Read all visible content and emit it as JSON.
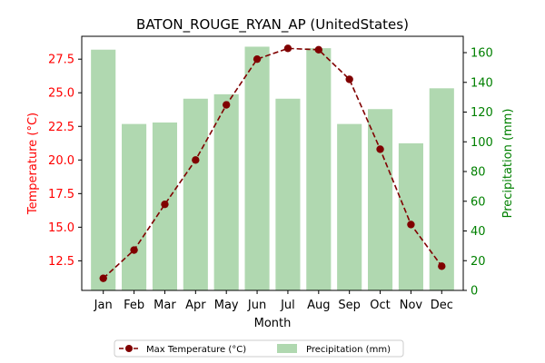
{
  "chart_data": {
    "type": "bar",
    "title": "BATON_ROUGE_RYAN_AP (UnitedStates)",
    "xlabel": "Month",
    "categories": [
      "Jan",
      "Feb",
      "Mar",
      "Apr",
      "May",
      "Jun",
      "Jul",
      "Aug",
      "Sep",
      "Oct",
      "Nov",
      "Dec"
    ],
    "left_axis": {
      "label": "Temperature (°C)",
      "color": "#ff0000",
      "range": [
        10.3,
        29.2
      ],
      "ticks": [
        "12.5",
        "15.0",
        "17.5",
        "20.0",
        "22.5",
        "25.0",
        "27.5"
      ]
    },
    "right_axis": {
      "label": "Precipitation (mm)",
      "color": "#008000",
      "range": [
        0,
        171
      ],
      "ticks": [
        "0",
        "20",
        "40",
        "60",
        "80",
        "100",
        "120",
        "140",
        "160"
      ]
    },
    "series": [
      {
        "name": "Max Temperature (°C)",
        "type": "line",
        "axis": "left",
        "color": "#800000",
        "line_style": "dashed",
        "marker": "circle",
        "values": [
          11.2,
          13.3,
          16.7,
          20.0,
          24.1,
          27.5,
          28.3,
          28.2,
          26.0,
          20.8,
          15.2,
          12.1
        ]
      },
      {
        "name": "Precipitation (mm)",
        "type": "bar",
        "axis": "right",
        "color": "#b0d8b0",
        "values": [
          162,
          112,
          113,
          129,
          132,
          164,
          129,
          163,
          112,
          122,
          99,
          136
        ]
      }
    ],
    "legend": {
      "placement": "bottom-center",
      "items": [
        "Max Temperature (°C)",
        "Precipitation (mm)"
      ]
    }
  }
}
